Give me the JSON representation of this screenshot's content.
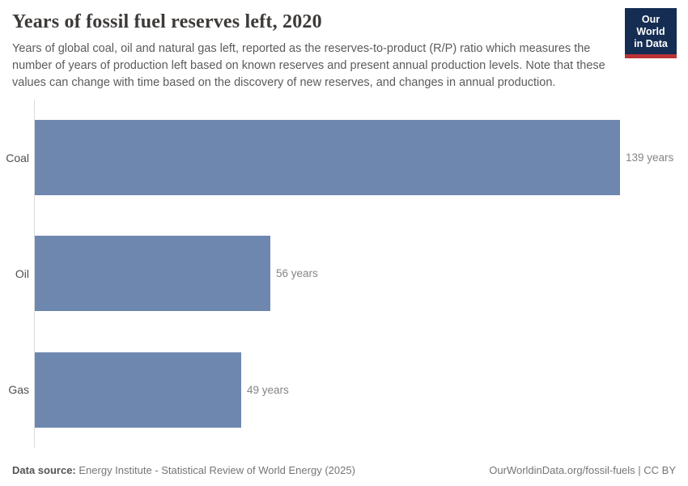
{
  "header": {
    "title": "Years of fossil fuel reserves left, 2020",
    "subtitle": "Years of global coal, oil and natural gas left, reported as the reserves-to-product (R/P) ratio which measures the number of years of production left based on known reserves and present annual production levels. Note that these values can change with time based on the discovery of new reserves, and changes in annual production."
  },
  "logo": {
    "line1": "Our World",
    "line2": "in Data",
    "background_color": "#152d52",
    "stripe_color": "#bc3336"
  },
  "chart_data": {
    "type": "bar",
    "orientation": "horizontal",
    "title": "Years of fossil fuel reserves left, 2020",
    "categories": [
      "Coal",
      "Oil",
      "Gas"
    ],
    "values": [
      139,
      56,
      49
    ],
    "value_labels": [
      "139 years",
      "56 years",
      "49 years"
    ],
    "unit": "years",
    "xlim": [
      0,
      139
    ],
    "bar_color": "#6e87af",
    "axis_line_color": "#dcdcdc",
    "grid": false,
    "legend": false
  },
  "footer": {
    "source_label": "Data source:",
    "source_text": "Energy Institute - Statistical Review of World Energy (2025)",
    "right_text": "OurWorldinData.org/fossil-fuels | CC BY"
  }
}
